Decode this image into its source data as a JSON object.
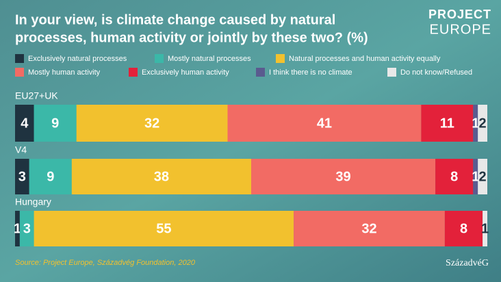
{
  "chart_data": {
    "type": "stacked-bar-horizontal",
    "title": [
      "In your view, is climate change caused by natural",
      "processes, human activity or jointly by these two? (%)"
    ],
    "logo": [
      "PROJECT",
      "EUROPE"
    ],
    "brand": "SzázadvéG",
    "source": "Source: Project Europe, Századvég Foundation, 2020",
    "categories": [
      "EU27+UK",
      "V4",
      "Hungary"
    ],
    "xlim": [
      0,
      100
    ],
    "series": [
      {
        "name": "Exclusively natural processes",
        "color": "#1f3340",
        "values": [
          4,
          3,
          1
        ]
      },
      {
        "name": "Mostly natural processes",
        "color": "#3bb8a8",
        "values": [
          9,
          9,
          3
        ]
      },
      {
        "name": "Natural processes and human activity equally",
        "color": "#f2c12e",
        "values": [
          32,
          38,
          55
        ]
      },
      {
        "name": "Mostly human activity",
        "color": "#f26b64",
        "values": [
          41,
          39,
          32
        ]
      },
      {
        "name": "Exclusively human activity",
        "color": "#e3213a",
        "values": [
          11,
          8,
          8
        ]
      },
      {
        "name": "I think there is no climate",
        "color": "#5a5b8f",
        "values": [
          1,
          1,
          0
        ]
      },
      {
        "name": "Do not know/Refused",
        "color": "#e8e8e8",
        "values": [
          2,
          2,
          1
        ]
      }
    ]
  }
}
